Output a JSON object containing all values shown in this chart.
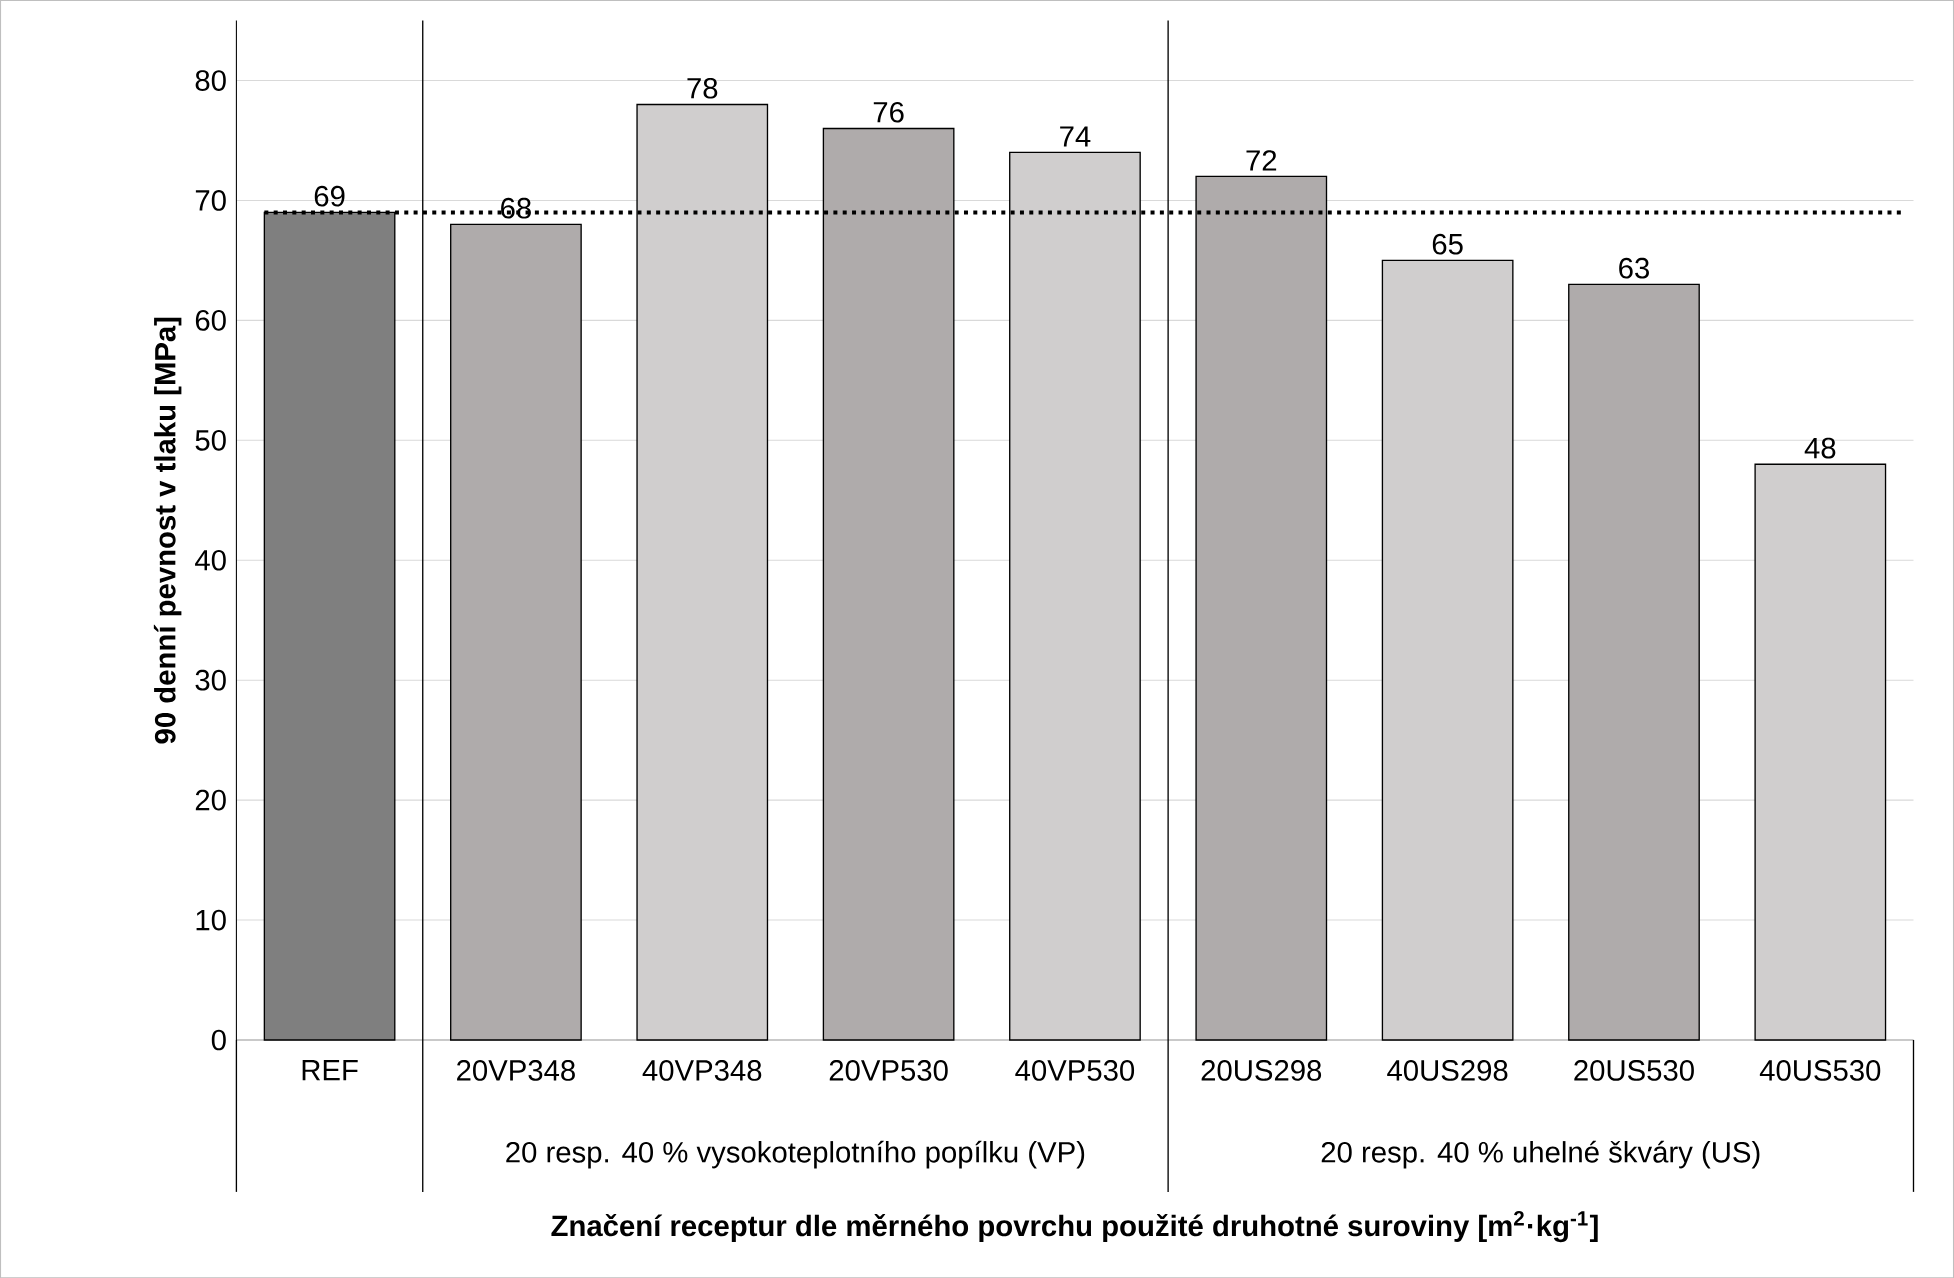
{
  "chart_data": {
    "type": "bar",
    "ylabel": "90 denní pevnost v tlaku [MPa]",
    "xlabel": "Značení receptur dle měrného povrchu použité druhotné suroviny [m$^{2}$·kg$^{-1}$]",
    "categories": [
      "REF",
      "20VP348",
      "40VP348",
      "20VP530",
      "40VP530",
      "20US298",
      "40US298",
      "20US530",
      "40US530"
    ],
    "values": [
      69,
      68,
      78,
      76,
      74,
      72,
      65,
      63,
      48
    ],
    "colors": [
      "#7f7f7f",
      "#afabab",
      "#d0cece",
      "#afabab",
      "#d0cece",
      "#afabab",
      "#d0cece",
      "#afabab",
      "#d0cece"
    ],
    "data_labels": true,
    "ylim": [
      0,
      85
    ],
    "yticks": [
      0,
      10,
      20,
      30,
      40,
      50,
      60,
      70,
      80
    ],
    "grid": "y",
    "ref_lines": [
      {
        "axis": "y",
        "value": 69,
        "line_style": "dotted",
        "color": "#000000"
      }
    ],
    "annotations": [
      "20 resp. 40 % vysokoteplotního popílku (VP)",
      "20 resp. 40 % uhelné škváry (US)"
    ]
  }
}
